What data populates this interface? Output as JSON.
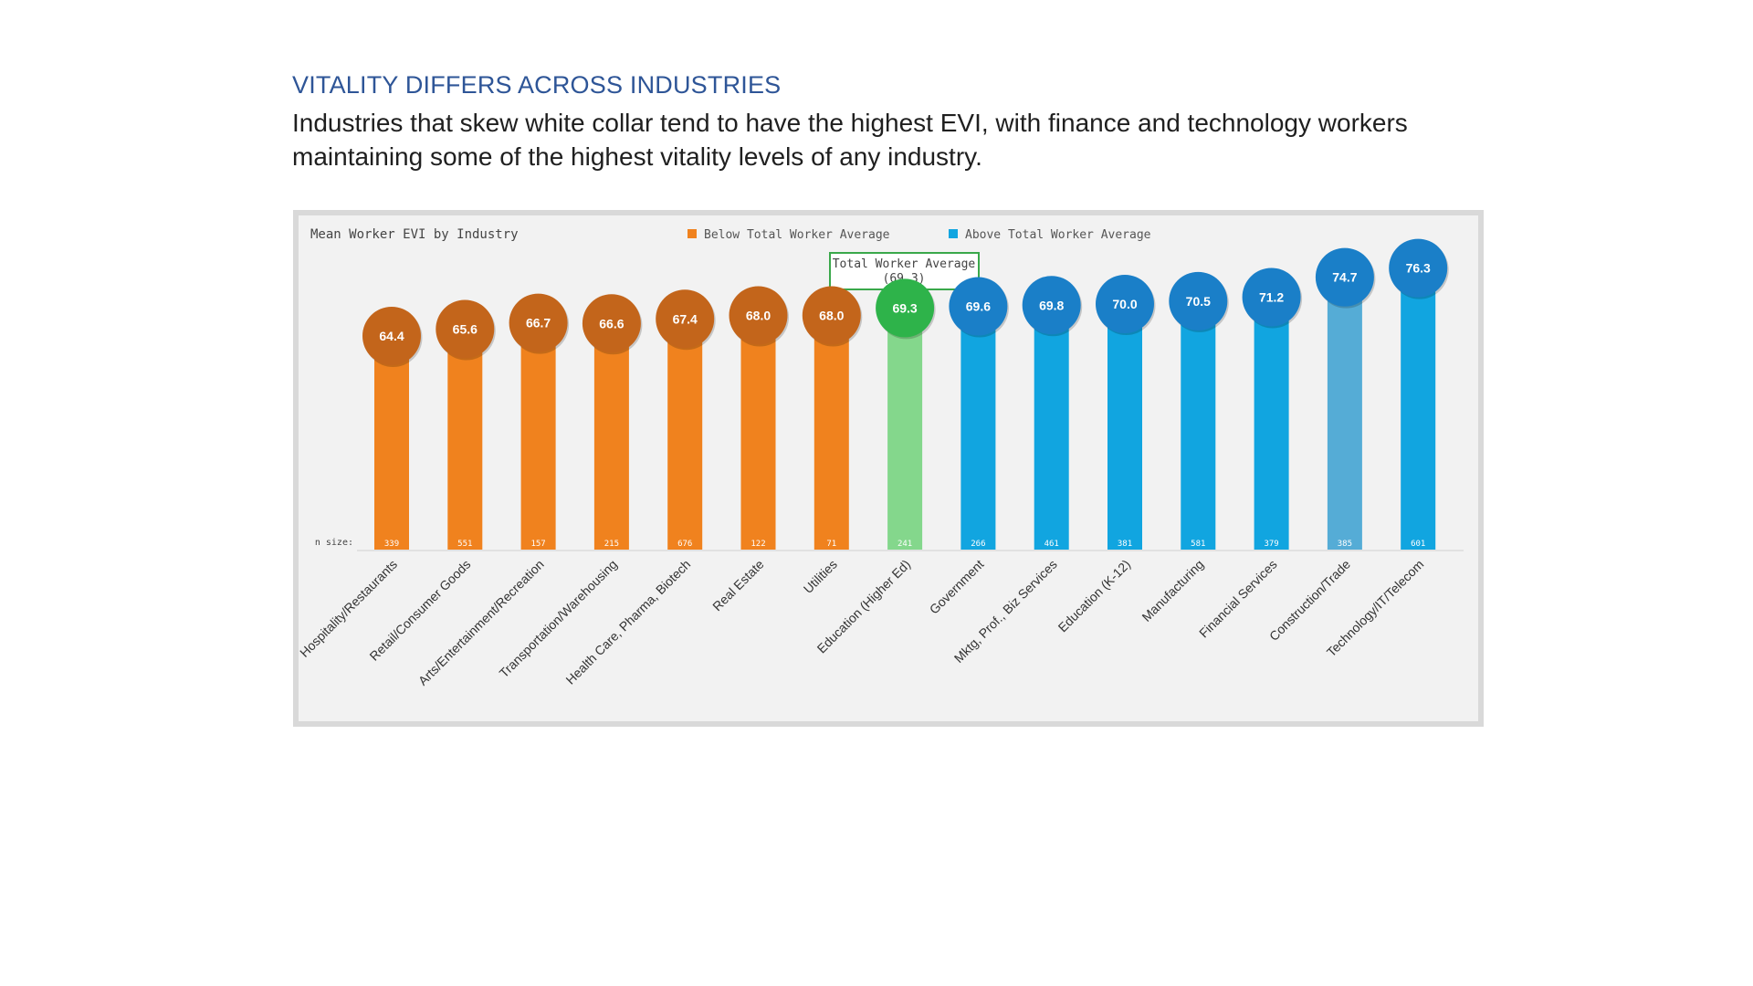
{
  "heading": "VITALITY DIFFERS ACROSS INDUSTRIES",
  "subtitle": "Industries that skew white collar tend to have the highest EVI, with finance and technology workers maintaining some of the highest vitality levels of any industry.",
  "chart_data": {
    "type": "bar",
    "title": "Mean Worker EVI by Industry",
    "legend": {
      "position": "top",
      "entries": [
        {
          "name": "Below Total Worker Average",
          "color": "#f0821e"
        },
        {
          "name": "Above Total Worker Average",
          "color": "#11a5e0"
        }
      ]
    },
    "reference": {
      "label": "Total Worker Average",
      "value_label": "(69.3)",
      "value": 69.3
    },
    "n_size_label": "n size:",
    "categories": [
      "Hospitality/Restaurants",
      "Retail/Consumer Goods",
      "Arts/Entertainment/Recreation",
      "Transportation/Warehousing",
      "Health Care, Pharma, Biotech",
      "Real Estate",
      "Utilities",
      "Education (Higher Ed)",
      "Government",
      "Mktg, Prof., Biz Services",
      "Education (K-12)",
      "Manufacturing",
      "Financial Services",
      "Construction/Trade",
      "Technology/IT/Telecom"
    ],
    "values": [
      64.4,
      65.6,
      66.7,
      66.6,
      67.4,
      68.0,
      68.0,
      69.3,
      69.6,
      69.8,
      70.0,
      70.5,
      71.2,
      74.7,
      76.3
    ],
    "value_labels": [
      "64.4",
      "65.6",
      "66.7",
      "66.6",
      "67.4",
      "68.0",
      "68.0",
      "69.3",
      "69.6",
      "69.8",
      "70.0",
      "70.5",
      "71.2",
      "74.7",
      "76.3"
    ],
    "n_sizes": [
      "339",
      "551",
      "157",
      "215",
      "676",
      "122",
      "71",
      "241",
      "266",
      "461",
      "381",
      "581",
      "379",
      "385",
      "601"
    ],
    "groups": [
      "below",
      "below",
      "below",
      "below",
      "below",
      "below",
      "below",
      "average",
      "above",
      "above",
      "above",
      "above",
      "above",
      "above",
      "above"
    ],
    "colors": {
      "below_bar": "#f0821e",
      "below_circle": "#c3651b",
      "average_bar": "#84d78c",
      "average_circle": "#2eb34a",
      "above_bar": "#11a5e0",
      "above_circle": "#1a7fc8",
      "light_above_bar": "#55acd6",
      "reference_box": "#3aa84b"
    },
    "grid": false
  }
}
